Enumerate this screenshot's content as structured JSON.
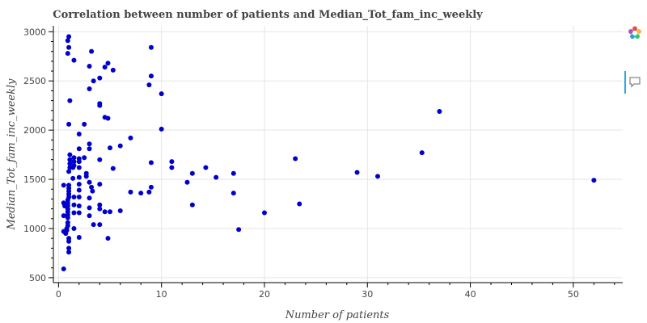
{
  "chart_data": {
    "type": "scatter",
    "title": "Correlation between number of patients and Median_Tot_fam_inc_weekly",
    "xlabel": "Number of patients",
    "ylabel": "Median_Tot_fam_inc_weekly",
    "xlim": [
      -0.5,
      54.8
    ],
    "ylim": [
      450,
      3060
    ],
    "xticks": [
      0,
      10,
      20,
      30,
      40,
      50
    ],
    "yticks": [
      500,
      1000,
      1500,
      2000,
      2500,
      3000
    ],
    "grid": true,
    "point_color": "#0000cd",
    "series": [
      {
        "points": [
          [
            0.5,
            590
          ],
          [
            0.7,
            950
          ],
          [
            0.8,
            980
          ],
          [
            0.8,
            1000
          ],
          [
            0.9,
            1030
          ],
          [
            0.9,
            1060
          ],
          [
            0.9,
            1110
          ],
          [
            0.9,
            1140
          ],
          [
            0.9,
            1170
          ],
          [
            0.9,
            1200
          ],
          [
            0.9,
            1230
          ],
          [
            0.9,
            1260
          ],
          [
            0.9,
            1290
          ],
          [
            1.0,
            1320
          ],
          [
            1.0,
            1350
          ],
          [
            1.0,
            1380
          ],
          [
            1.0,
            1410
          ],
          [
            1.0,
            1440
          ],
          [
            1.0,
            900
          ],
          [
            1.0,
            870
          ],
          [
            1.0,
            760
          ],
          [
            1.0,
            800
          ],
          [
            1.0,
            1580
          ],
          [
            1.1,
            1620
          ],
          [
            1.1,
            1660
          ],
          [
            1.1,
            1700
          ],
          [
            1.1,
            1750
          ],
          [
            1.0,
            2060
          ],
          [
            1.1,
            2300
          ],
          [
            0.9,
            2780
          ],
          [
            0.9,
            2910
          ],
          [
            1.0,
            2950
          ],
          [
            1.0,
            2840
          ],
          [
            0.5,
            1440
          ],
          [
            0.5,
            1260
          ],
          [
            0.5,
            1130
          ],
          [
            0.5,
            970
          ],
          [
            0.6,
            1230
          ],
          [
            1.4,
            1510
          ],
          [
            1.4,
            1620
          ],
          [
            1.5,
            1320
          ],
          [
            1.5,
            1000
          ],
          [
            1.5,
            1160
          ],
          [
            1.5,
            1240
          ],
          [
            1.5,
            1640
          ],
          [
            1.5,
            1680
          ],
          [
            1.5,
            1720
          ],
          [
            1.5,
            2710
          ],
          [
            2.0,
            910
          ],
          [
            2.0,
            1160
          ],
          [
            2.0,
            1230
          ],
          [
            2.0,
            1320
          ],
          [
            2.0,
            1390
          ],
          [
            2.0,
            1450
          ],
          [
            2.0,
            1520
          ],
          [
            2.0,
            1620
          ],
          [
            2.0,
            1680
          ],
          [
            2.0,
            1710
          ],
          [
            2.0,
            1810
          ],
          [
            2.0,
            1960
          ],
          [
            2.5,
            2060
          ],
          [
            2.5,
            1720
          ],
          [
            2.7,
            1560
          ],
          [
            2.7,
            1530
          ],
          [
            3.0,
            1210
          ],
          [
            3.0,
            1310
          ],
          [
            3.0,
            1470
          ],
          [
            3.0,
            1810
          ],
          [
            3.0,
            1860
          ],
          [
            3.0,
            2420
          ],
          [
            3.0,
            2650
          ],
          [
            3.0,
            1130
          ],
          [
            3.2,
            1420
          ],
          [
            3.3,
            1380
          ],
          [
            3.4,
            1040
          ],
          [
            3.4,
            2500
          ],
          [
            3.2,
            2800
          ],
          [
            4.0,
            1040
          ],
          [
            4.0,
            1200
          ],
          [
            4.0,
            1240
          ],
          [
            4.0,
            1450
          ],
          [
            4.0,
            1700
          ],
          [
            4.0,
            2250
          ],
          [
            4.0,
            2270
          ],
          [
            4.0,
            2530
          ],
          [
            4.5,
            2640
          ],
          [
            4.5,
            2130
          ],
          [
            4.8,
            2120
          ],
          [
            4.8,
            2680
          ],
          [
            4.5,
            1170
          ],
          [
            4.8,
            900
          ],
          [
            5.0,
            1170
          ],
          [
            5.0,
            1820
          ],
          [
            5.3,
            1610
          ],
          [
            5.3,
            2610
          ],
          [
            6.0,
            1180
          ],
          [
            6.0,
            1840
          ],
          [
            7.0,
            1370
          ],
          [
            7.0,
            1920
          ],
          [
            8.0,
            1360
          ],
          [
            8.8,
            1370
          ],
          [
            8.8,
            2460
          ],
          [
            9.0,
            2840
          ],
          [
            9.0,
            2550
          ],
          [
            9.0,
            1670
          ],
          [
            9.0,
            1420
          ],
          [
            10.0,
            2370
          ],
          [
            10.0,
            2010
          ],
          [
            11.0,
            1680
          ],
          [
            11.0,
            1620
          ],
          [
            12.5,
            1470
          ],
          [
            13.0,
            1560
          ],
          [
            13.0,
            1240
          ],
          [
            14.3,
            1620
          ],
          [
            15.3,
            1520
          ],
          [
            17.0,
            1560
          ],
          [
            17.0,
            1360
          ],
          [
            17.5,
            990
          ],
          [
            20.0,
            1160
          ],
          [
            23.0,
            1710
          ],
          [
            23.4,
            1250
          ],
          [
            29.0,
            1570
          ],
          [
            31.0,
            1530
          ],
          [
            35.3,
            1770
          ],
          [
            37.0,
            2190
          ],
          [
            52.0,
            1490
          ]
        ]
      }
    ]
  }
}
